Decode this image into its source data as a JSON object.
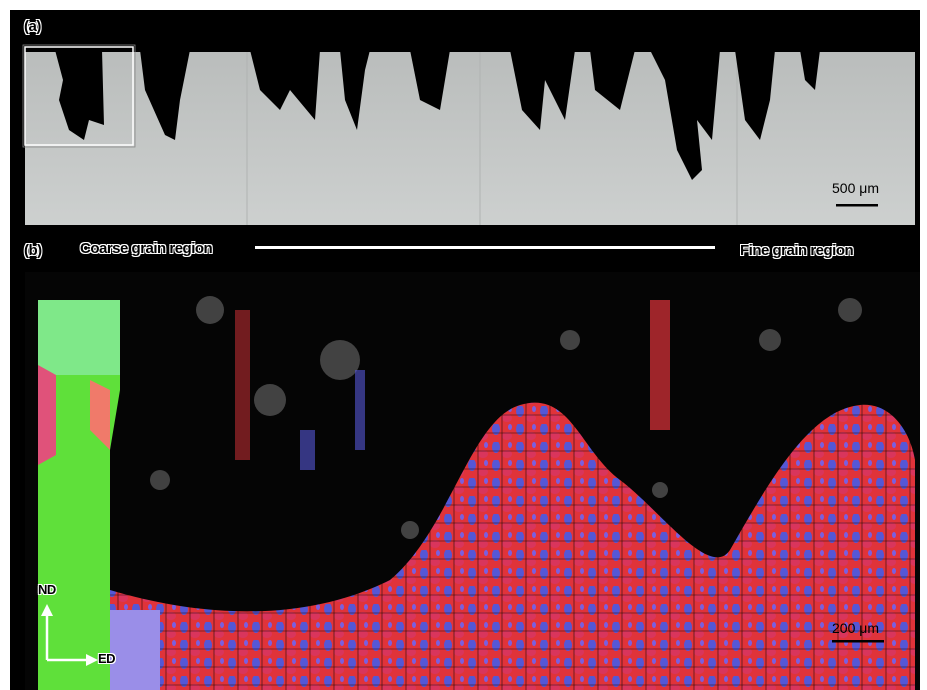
{
  "panel_a": {
    "label": "(a)",
    "scale_bar": "500 μm"
  },
  "panel_b": {
    "label": "(b)",
    "left_region": "Coarse grain region",
    "right_region": "Fine grain region",
    "scale_bar": "200 μm",
    "axes": {
      "vertical": "ND",
      "horizontal": "ED"
    }
  },
  "colors": {
    "background": "#000000",
    "matrix_gray": "#c9cccb",
    "grain_red": "#e8323a",
    "grain_blue": "#5a5ad8",
    "grain_green": "#5fe03a"
  }
}
